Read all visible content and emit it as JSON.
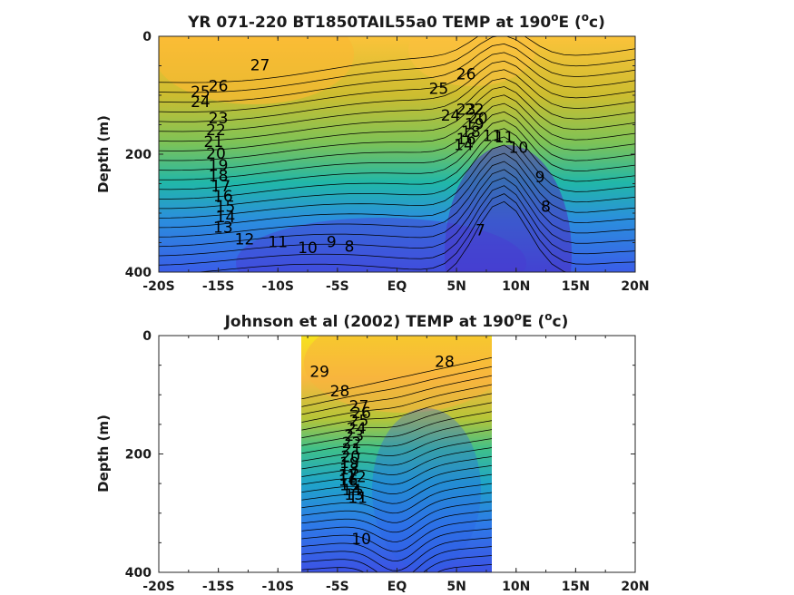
{
  "chart_data": [
    {
      "type": "contour",
      "title_main": "YR 071-220 BT1850TAIL55a0 TEMP at 190",
      "title_sup": "o",
      "title_end": "E (",
      "title_unit_sup": "o",
      "title_unit_end": "c)",
      "ylabel": "Depth (m)",
      "xlim": [
        -20,
        20
      ],
      "ylim": [
        0,
        400
      ],
      "xticks": [
        -20,
        -15,
        -10,
        -5,
        0,
        5,
        10,
        15,
        20
      ],
      "xticklabels": [
        "-20S",
        "-15S",
        "-10S",
        "-5S",
        "EQ",
        "5N",
        "10N",
        "15N",
        "20N"
      ],
      "yticks": [
        0,
        200,
        400
      ],
      "yticklabels": [
        "0",
        "200",
        "400"
      ],
      "data_extent": [
        -20,
        20
      ],
      "contour_labels": [
        {
          "text": "27",
          "x": -11.5,
          "y": 50
        },
        {
          "text": "26",
          "x": -15.0,
          "y": 85
        },
        {
          "text": "25",
          "x": -16.5,
          "y": 95
        },
        {
          "text": "24",
          "x": -16.5,
          "y": 112
        },
        {
          "text": "23",
          "x": -15.0,
          "y": 140
        },
        {
          "text": "22",
          "x": -15.2,
          "y": 160
        },
        {
          "text": "21",
          "x": -15.4,
          "y": 180
        },
        {
          "text": "20",
          "x": -15.2,
          "y": 200
        },
        {
          "text": "19",
          "x": -15.0,
          "y": 220
        },
        {
          "text": "18",
          "x": -15.0,
          "y": 238
        },
        {
          "text": "17",
          "x": -14.8,
          "y": 255
        },
        {
          "text": "16",
          "x": -14.6,
          "y": 272
        },
        {
          "text": "15",
          "x": -14.4,
          "y": 290
        },
        {
          "text": "14",
          "x": -14.4,
          "y": 308
        },
        {
          "text": "13",
          "x": -14.6,
          "y": 325
        },
        {
          "text": "12",
          "x": -12.8,
          "y": 345
        },
        {
          "text": "11",
          "x": -10.0,
          "y": 350
        },
        {
          "text": "10",
          "x": -7.5,
          "y": 360
        },
        {
          "text": "9",
          "x": -5.5,
          "y": 350
        },
        {
          "text": "8",
          "x": -4.0,
          "y": 358
        },
        {
          "text": "26",
          "x": 5.8,
          "y": 65
        },
        {
          "text": "25",
          "x": 3.5,
          "y": 90
        },
        {
          "text": "24",
          "x": 4.5,
          "y": 135
        },
        {
          "text": "23",
          "x": 5.8,
          "y": 125
        },
        {
          "text": "22",
          "x": 6.5,
          "y": 125
        },
        {
          "text": "20",
          "x": 6.8,
          "y": 140
        },
        {
          "text": "19",
          "x": 6.5,
          "y": 150
        },
        {
          "text": "18",
          "x": 6.2,
          "y": 163
        },
        {
          "text": "16",
          "x": 5.8,
          "y": 175
        },
        {
          "text": "14",
          "x": 5.6,
          "y": 185
        },
        {
          "text": "11",
          "x": 8.0,
          "y": 170
        },
        {
          "text": "11",
          "x": 9.0,
          "y": 172
        },
        {
          "text": "10",
          "x": 10.2,
          "y": 190
        },
        {
          "text": "9",
          "x": 12.0,
          "y": 240
        },
        {
          "text": "8",
          "x": 12.5,
          "y": 290
        },
        {
          "text": "7",
          "x": 7.0,
          "y": 330
        }
      ]
    },
    {
      "type": "contour",
      "title_main": "Johnson et al (2002) TEMP at 190",
      "title_sup": "o",
      "title_end": "E (",
      "title_unit_sup": "o",
      "title_unit_end": "c)",
      "ylabel": "Depth (m)",
      "xlim": [
        -20,
        20
      ],
      "ylim": [
        0,
        400
      ],
      "xticks": [
        -20,
        -15,
        -10,
        -5,
        0,
        5,
        10,
        15,
        20
      ],
      "xticklabels": [
        "-20S",
        "-15S",
        "-10S",
        "-5S",
        "EQ",
        "5N",
        "10N",
        "15N",
        "20N"
      ],
      "yticks": [
        0,
        200,
        400
      ],
      "yticklabels": [
        "0",
        "200",
        "400"
      ],
      "data_extent": [
        -8,
        8
      ],
      "contour_labels": [
        {
          "text": "29",
          "x": -6.5,
          "y": 62
        },
        {
          "text": "28",
          "x": -4.8,
          "y": 95
        },
        {
          "text": "28",
          "x": 4.0,
          "y": 45
        },
        {
          "text": "27",
          "x": -3.2,
          "y": 120
        },
        {
          "text": "26",
          "x": -3.0,
          "y": 132
        },
        {
          "text": "25",
          "x": -3.2,
          "y": 145
        },
        {
          "text": "24",
          "x": -3.4,
          "y": 158
        },
        {
          "text": "23",
          "x": -3.6,
          "y": 170
        },
        {
          "text": "22",
          "x": -3.8,
          "y": 182
        },
        {
          "text": "21",
          "x": -3.8,
          "y": 193
        },
        {
          "text": "20",
          "x": -3.9,
          "y": 205
        },
        {
          "text": "19",
          "x": -4.0,
          "y": 216
        },
        {
          "text": "18",
          "x": -4.0,
          "y": 227
        },
        {
          "text": "17",
          "x": -4.1,
          "y": 237
        },
        {
          "text": "16",
          "x": -4.1,
          "y": 246
        },
        {
          "text": "15",
          "x": -4.0,
          "y": 254
        },
        {
          "text": "14",
          "x": -3.8,
          "y": 262
        },
        {
          "text": "13",
          "x": -3.6,
          "y": 270
        },
        {
          "text": "12",
          "x": -3.4,
          "y": 240
        },
        {
          "text": "11",
          "x": -3.3,
          "y": 275
        },
        {
          "text": "10",
          "x": -3.0,
          "y": 345
        }
      ]
    }
  ]
}
